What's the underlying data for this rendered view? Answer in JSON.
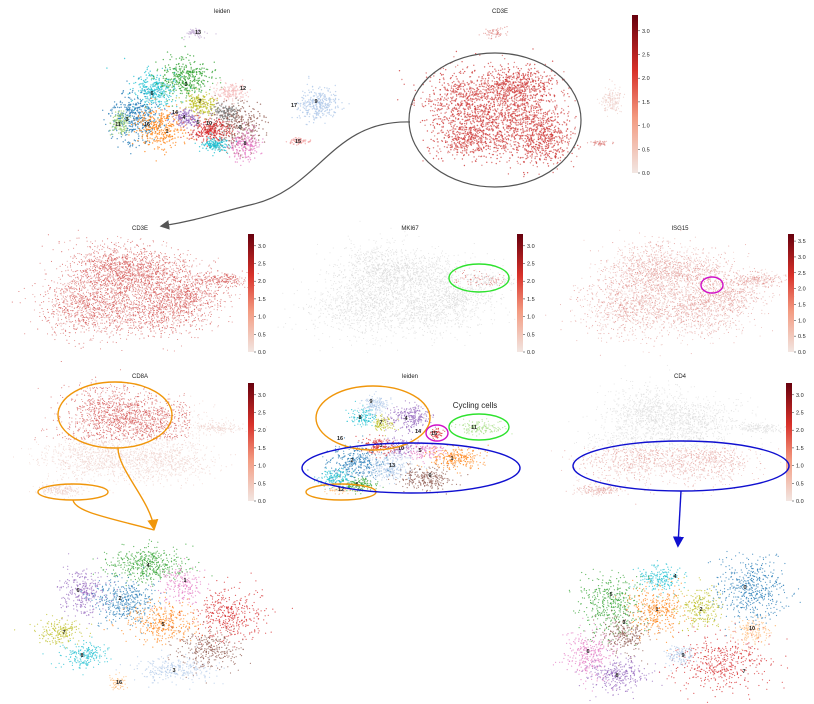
{
  "panels": {
    "top_leiden": {
      "title": "leiden"
    },
    "top_cd3e": {
      "title": "CD3E",
      "ticks": [
        "0.0",
        "0.5",
        "1.0",
        "1.5",
        "2.0",
        "2.5",
        "3.0"
      ]
    },
    "cd3e": {
      "title": "CD3E",
      "ticks": [
        "0.0",
        "0.5",
        "1.0",
        "1.5",
        "2.0",
        "2.5",
        "3.0"
      ]
    },
    "mki67": {
      "title": "MKI67",
      "ticks": [
        "0.0",
        "0.5",
        "1.0",
        "1.5",
        "2.0",
        "2.5",
        "3.0"
      ]
    },
    "isg15": {
      "title": "ISG15",
      "ticks": [
        "0.0",
        "0.5",
        "1.0",
        "1.5",
        "2.0",
        "2.5",
        "3.0",
        "3.5"
      ]
    },
    "cd8a": {
      "title": "CD8A",
      "ticks": [
        "0.0",
        "0.5",
        "1.0",
        "1.5",
        "2.0",
        "2.5",
        "3.0"
      ]
    },
    "mid_leiden": {
      "title": "leiden",
      "annotation": "Cycling cells"
    },
    "cd4": {
      "title": "CD4",
      "ticks": [
        "0.0",
        "0.5",
        "1.0",
        "1.5",
        "2.0",
        "2.5",
        "3.0"
      ]
    }
  },
  "colors": {
    "tab10": [
      "#1f77b4",
      "#ff7f0e",
      "#2ca02c",
      "#d62728",
      "#9467bd",
      "#8c564b",
      "#e377c2",
      "#bcbd22",
      "#17becf",
      "#aec7e8",
      "#98df8a",
      "#ffbb78",
      "#c5b0d5"
    ],
    "expr_low": "#f1dcd6",
    "expr_high": "#67000d",
    "orange": "#f0960a",
    "blue": "#1010d0",
    "green": "#2ee22e",
    "magenta": "#d010c8",
    "grey": "#555555"
  },
  "cluster_labels": {
    "top_leiden": [
      "13",
      "6",
      "2",
      "12",
      "7",
      "17",
      "9",
      "3",
      "14",
      "4",
      "5",
      "16",
      "1",
      "10",
      "0",
      "8",
      "11",
      "15"
    ],
    "mid_leiden": [
      "9",
      "8",
      "7",
      "16",
      "4",
      "14",
      "15",
      "11",
      "3",
      "10",
      "5",
      "2",
      "13",
      "1",
      "0",
      "6",
      "12"
    ],
    "bottom_left": [
      "4",
      "6",
      "2",
      "1",
      "7",
      "8",
      "16",
      "3",
      "5"
    ],
    "bottom_right": [
      "4",
      "0",
      "5",
      "1",
      "2",
      "3",
      "7",
      "10",
      "9",
      "6",
      "8"
    ]
  }
}
